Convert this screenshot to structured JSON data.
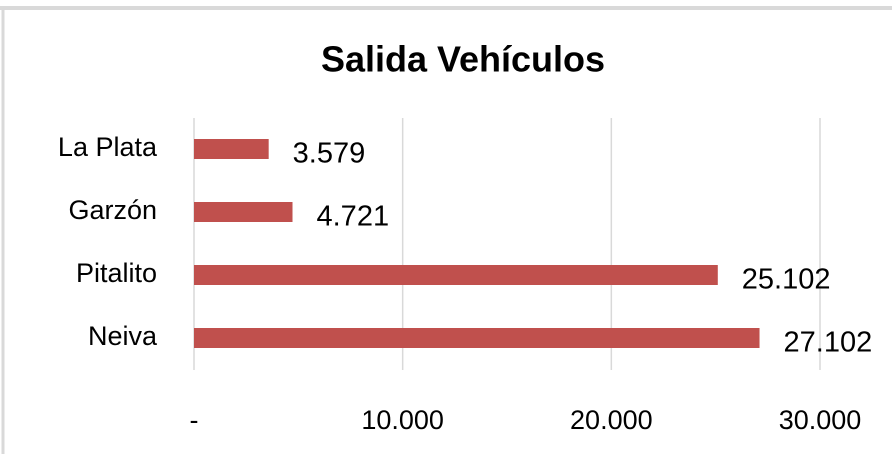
{
  "chart_data": {
    "type": "bar",
    "orientation": "horizontal",
    "title": "Salida Vehículos",
    "categories": [
      "La Plata",
      "Garzón",
      "Pitalito",
      "Neiva"
    ],
    "values": [
      3579,
      4721,
      25102,
      27102
    ],
    "value_labels": [
      "3.579",
      "4.721",
      "25.102",
      "27.102"
    ],
    "color": "#c0504d",
    "xlim": [
      0,
      30000
    ],
    "xticks": [
      {
        "value": 0,
        "label": "-"
      },
      {
        "value": 10000,
        "label": "10.000"
      },
      {
        "value": 20000,
        "label": "20.000"
      },
      {
        "value": 30000,
        "label": "30.000"
      }
    ],
    "grid": true
  }
}
